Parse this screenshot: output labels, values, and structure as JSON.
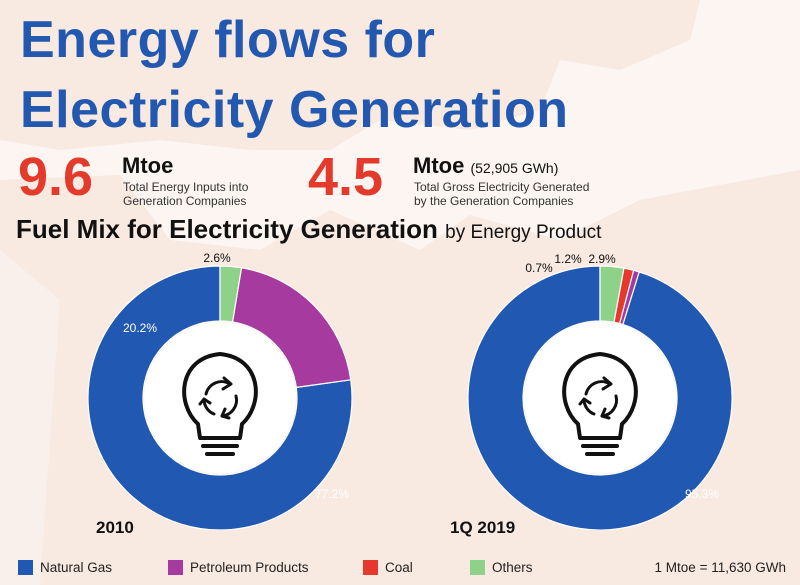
{
  "header": {
    "title_line1": "Energy flows for",
    "title_line2": "Electricity Generation"
  },
  "stats": [
    {
      "value": "9.6",
      "unit": "Mtoe",
      "unit_sub": "",
      "desc_line1": "Total Energy Inputs into",
      "desc_line2": "Generation Companies"
    },
    {
      "value": "4.5",
      "unit": "Mtoe",
      "unit_sub": "(52,905 GWh)",
      "desc_line1": "Total Gross Electricity Generated",
      "desc_line2": "by the Generation Companies"
    }
  ],
  "section": {
    "title": "Fuel Mix for Electricity Generation",
    "title_suffix": "by Energy Product"
  },
  "colors": {
    "natural_gas": "#2158b1",
    "petroleum": "#a63a9e",
    "coal": "#e4392c",
    "others": "#8ed28a",
    "title_blue": "#2258b0",
    "accent_red": "#e33a2c"
  },
  "chart_data": [
    {
      "type": "pie",
      "title": "2010",
      "categories": [
        "Natural Gas",
        "Petroleum Products",
        "Coal",
        "Others"
      ],
      "values": [
        77.2,
        20.2,
        0,
        2.6
      ],
      "labels": [
        "77.2%",
        "20.2%",
        "",
        "2.6%"
      ]
    },
    {
      "type": "pie",
      "title": "1Q 2019",
      "categories": [
        "Natural Gas",
        "Petroleum Products",
        "Coal",
        "Others"
      ],
      "values": [
        95.3,
        0.7,
        1.2,
        2.9
      ],
      "labels": [
        "95.3%",
        "0.7%",
        "1.2%",
        "2.9%"
      ]
    }
  ],
  "legend": {
    "items": [
      "Natural Gas",
      "Petroleum Products",
      "Coal",
      "Others"
    ],
    "conversion": "1 Mtoe = 11,630 GWh"
  }
}
